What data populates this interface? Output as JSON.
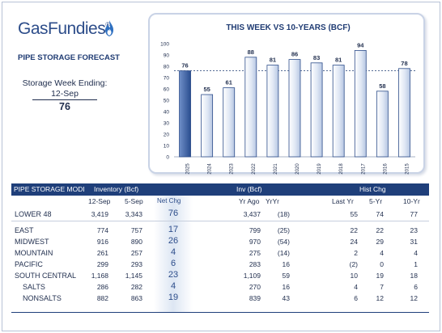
{
  "header": {
    "logo_text": "GasFundies",
    "logo_reg": "®",
    "forecast_title": "PIPE STORAGE FORECAST",
    "week_label": "Storage Week Ending:",
    "week_date": "12-Sep",
    "week_value": "76"
  },
  "chart_data": {
    "type": "bar",
    "title": "THIS WEEK VS 10-YEARS (BCF)",
    "categories": [
      "2025",
      "2024",
      "2023",
      "2022",
      "2021",
      "2020",
      "2019",
      "2018",
      "2017",
      "2016",
      "2015"
    ],
    "values": [
      76,
      55,
      61,
      88,
      81,
      86,
      83,
      81,
      94,
      58,
      78
    ],
    "data_labels": [
      "76",
      "55",
      "61",
      "88",
      "81",
      "86",
      "83",
      "81",
      "94",
      "58",
      "78"
    ],
    "yticks": [
      "0",
      "10",
      "20",
      "30",
      "40",
      "50",
      "60",
      "70",
      "80",
      "90",
      "100"
    ],
    "ylim": [
      0,
      100
    ],
    "reference_line": 76,
    "colors": {
      "highlight": "#2a4d8f",
      "bar_light": "#dfe7f4",
      "bar_edge": "#2d4d8a",
      "title": "#1f3b73"
    }
  },
  "table": {
    "header": {
      "col_label": "PIPE STORAGE MODI",
      "inventory": "Inventory (Bcf)",
      "inv": "Inv (Bcf)",
      "hist": "Hist Chg"
    },
    "subheader": {
      "c1": "12-Sep",
      "c2": "5-Sep",
      "c3": "Net Chg",
      "c4": "Yr Ago",
      "c5": "YrYr",
      "c6": "Last Yr",
      "c7": "5-Yr",
      "c8": "10-Yr"
    },
    "rows": [
      {
        "name": "LOWER 48",
        "v1": "3,419",
        "v2": "3,343",
        "net": "76",
        "yrago": "3,437",
        "yryr": "(18)",
        "last": "55",
        "five": "74",
        "ten": "77"
      },
      {
        "name": "EAST",
        "v1": "774",
        "v2": "757",
        "net": "17",
        "yrago": "799",
        "yryr": "(25)",
        "last": "22",
        "five": "22",
        "ten": "23"
      },
      {
        "name": "MIDWEST",
        "v1": "916",
        "v2": "890",
        "net": "26",
        "yrago": "970",
        "yryr": "(54)",
        "last": "24",
        "five": "29",
        "ten": "31"
      },
      {
        "name": "MOUNTAIN",
        "v1": "261",
        "v2": "257",
        "net": "4",
        "yrago": "275",
        "yryr": "(14)",
        "last": "2",
        "five": "4",
        "ten": "4"
      },
      {
        "name": "PACIFIC",
        "v1": "299",
        "v2": "293",
        "net": "6",
        "yrago": "283",
        "yryr": "16",
        "last": "(2)",
        "five": "0",
        "ten": "1"
      },
      {
        "name": "SOUTH CENTRAL",
        "v1": "1,168",
        "v2": "1,145",
        "net": "23",
        "yrago": "1,109",
        "yryr": "59",
        "last": "10",
        "five": "19",
        "ten": "18"
      },
      {
        "name": "SALTS",
        "v1": "286",
        "v2": "282",
        "net": "4",
        "yrago": "270",
        "yryr": "16",
        "last": "4",
        "five": "7",
        "ten": "6"
      },
      {
        "name": "NONSALTS",
        "v1": "882",
        "v2": "863",
        "net": "19",
        "yrago": "839",
        "yryr": "43",
        "last": "6",
        "five": "12",
        "ten": "12"
      }
    ]
  }
}
